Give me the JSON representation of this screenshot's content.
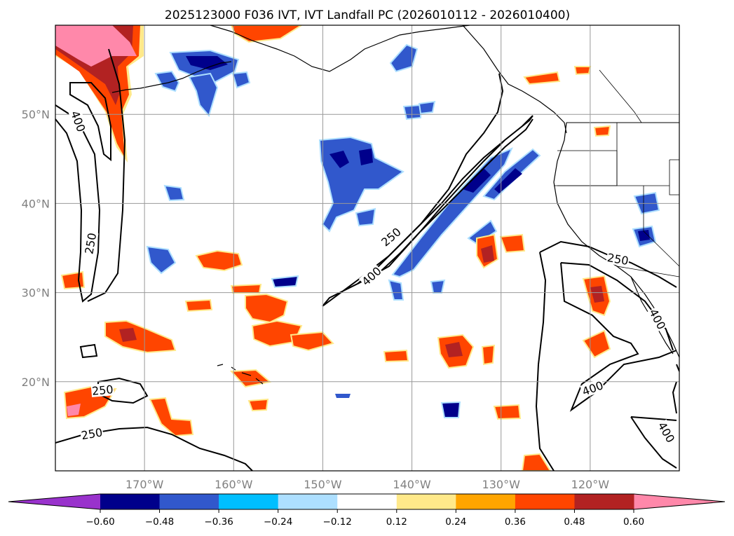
{
  "chart_data": {
    "type": "contour-map",
    "title": "2025123000 F036 IVT, IVT Landfall PC (2026010112 - 2026010400)",
    "lon_range": [
      -180,
      -110
    ],
    "lat_range": [
      10,
      60
    ],
    "lon_ticks": [
      {
        "value": -170,
        "label": "170°W"
      },
      {
        "value": -160,
        "label": "160°W"
      },
      {
        "value": -150,
        "label": "150°W"
      },
      {
        "value": -140,
        "label": "140°W"
      },
      {
        "value": -130,
        "label": "130°W"
      },
      {
        "value": -120,
        "label": "120°W"
      }
    ],
    "lat_ticks": [
      {
        "value": 50,
        "label": "50°N"
      },
      {
        "value": 40,
        "label": "40°N"
      },
      {
        "value": 30,
        "label": "30°N"
      },
      {
        "value": 20,
        "label": "20°N"
      }
    ],
    "gridlines": true,
    "colorbar": {
      "orientation": "horizontal",
      "extend": "both",
      "boundaries": [
        -0.6,
        -0.48,
        -0.36,
        -0.24,
        -0.12,
        0.12,
        0.24,
        0.36,
        0.48,
        0.6
      ],
      "tick_labels": [
        "-0.60",
        "-0.48",
        "-0.36",
        "-0.24",
        "-0.12",
        "0.12",
        "0.24",
        "0.36",
        "0.48",
        "0.60"
      ],
      "under_color": "#9932CC",
      "over_color": "#FF88AA",
      "bin_colors": [
        "#00008B",
        "#3158CC",
        "#00BFFF",
        "#ADDFFF",
        "#FFFFFF",
        "#FFE98A",
        "#FFA500",
        "#FF4500",
        "#B22222"
      ]
    },
    "ivt_contour_levels": [
      250,
      400
    ],
    "contour_labels": [
      {
        "text": "400",
        "lon": -177.5,
        "lat": 49.2,
        "angle": 70
      },
      {
        "text": "250",
        "lon": -176.0,
        "lat": 35.5,
        "angle": -80
      },
      {
        "text": "250",
        "lon": -142.3,
        "lat": 36.2,
        "angle": -40
      },
      {
        "text": "400",
        "lon": -144.5,
        "lat": 31.8,
        "angle": -42
      },
      {
        "text": "250",
        "lon": -116.9,
        "lat": 33.7,
        "angle": 10
      },
      {
        "text": "400",
        "lon": -112.5,
        "lat": 27.0,
        "angle": 62
      },
      {
        "text": "250",
        "lon": -174.7,
        "lat": 19.0,
        "angle": -5
      },
      {
        "text": "250",
        "lon": -175.9,
        "lat": 14.1,
        "angle": -10
      },
      {
        "text": "400",
        "lon": -119.7,
        "lat": 19.2,
        "angle": -20
      },
      {
        "text": "400",
        "lon": -111.5,
        "lat": 14.3,
        "angle": 60
      }
    ]
  }
}
